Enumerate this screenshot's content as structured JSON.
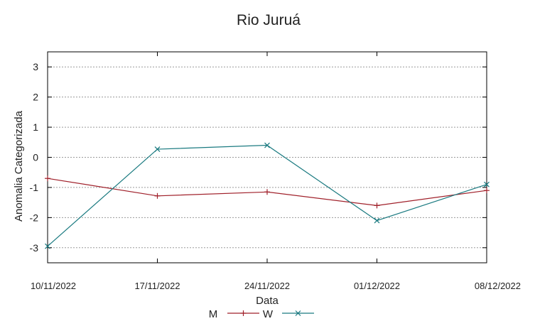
{
  "chart_data": {
    "type": "line",
    "title": "Rio Juruá",
    "xlabel": "Data",
    "ylabel": "Anomalia Categorizada",
    "x": [
      "10/11/2022",
      "17/11/2022",
      "24/11/2022",
      "01/12/2022",
      "08/12/2022"
    ],
    "yticks": [
      3,
      2,
      1,
      0,
      -1,
      -2,
      -3
    ],
    "ylim": [
      -3.5,
      3.5
    ],
    "grid": "horizontal dashed",
    "legend_position": "bottom",
    "series": [
      {
        "name": "M",
        "marker": "plus",
        "color": "#a0202a",
        "values": [
          -0.7,
          -1.28,
          -1.15,
          -1.6,
          -1.1
        ]
      },
      {
        "name": "W",
        "marker": "cross",
        "color": "#1a7a80",
        "values": [
          -2.95,
          0.27,
          0.4,
          -2.1,
          -0.9
        ]
      }
    ]
  }
}
